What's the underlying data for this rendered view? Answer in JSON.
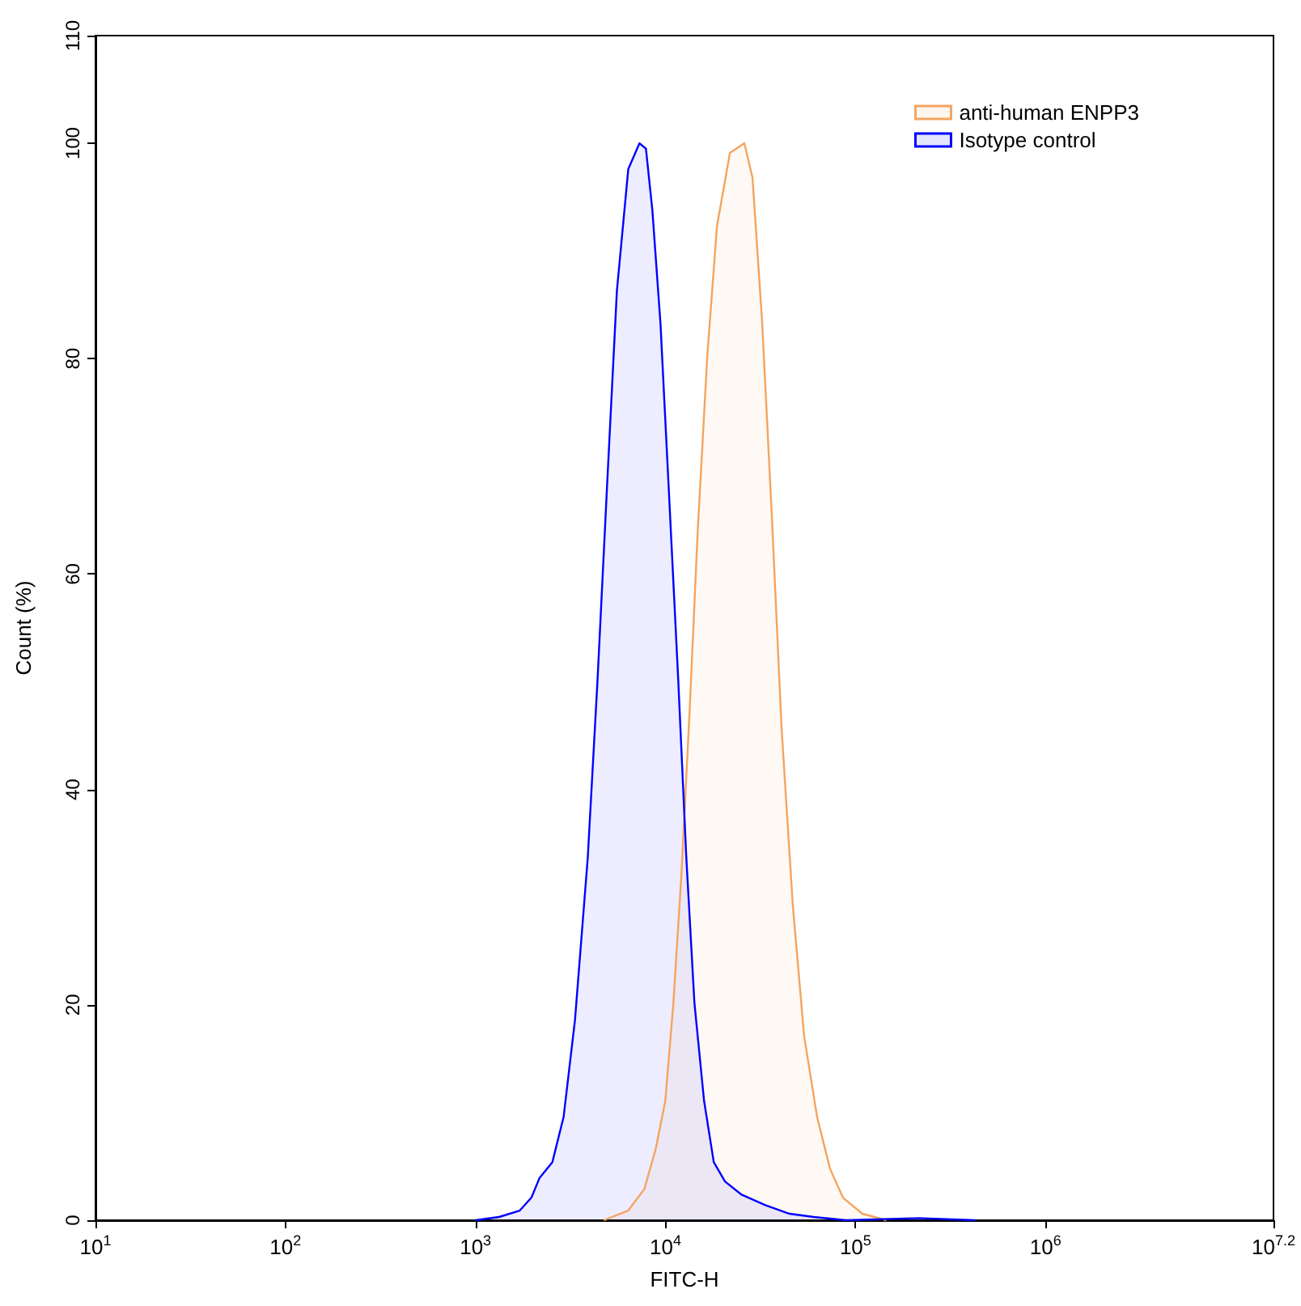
{
  "chart_data": {
    "type": "area",
    "xlabel": "FITC-H",
    "ylabel": "Count (%)",
    "log": "x",
    "xlim": [
      10,
      15848932
    ],
    "xticks": [
      {
        "value": 10,
        "label": "10$^{1}$"
      },
      {
        "value": 100,
        "label": "10$^{2}$"
      },
      {
        "value": 1000,
        "label": "10$^{3}$"
      },
      {
        "value": 10000,
        "label": "10$^{4}$"
      },
      {
        "value": 100000,
        "label": "10$^{5}$"
      },
      {
        "value": 1000000,
        "label": "10$^{6}$"
      },
      {
        "value": 15848932,
        "label": "10$^{7.2}$"
      }
    ],
    "ylim": [
      0,
      110
    ],
    "yticks": [
      0,
      20,
      40,
      60,
      80,
      100,
      110
    ],
    "grid": false,
    "legend": "top right",
    "series": [
      {
        "name": "anti-human ENPP3",
        "color": "#f4a460",
        "x": [
          4740,
          6370,
          7740,
          8880,
          9980,
          11010,
          12140,
          13390,
          14760,
          16600,
          18660,
          21830,
          26020,
          28710,
          32290,
          36310,
          40830,
          46810,
          53680,
          62780,
          73400,
          85900,
          108700,
          145500
        ],
        "values": [
          0,
          0.9,
          2.9,
          6.6,
          11.1,
          20.2,
          32.2,
          47.2,
          63.8,
          80.3,
          92.3,
          99.1,
          100,
          96.8,
          83.3,
          65.3,
          45.7,
          29.2,
          17.1,
          9.6,
          4.8,
          2.1,
          0.6,
          0
        ]
      },
      {
        "name": "Isotype control",
        "color": "#0000ff",
        "x": [
          1000,
          1330,
          1710,
          1970,
          2170,
          2540,
          2910,
          3340,
          3900,
          4390,
          4930,
          5550,
          6370,
          7300,
          7890,
          8530,
          9410,
          10380,
          11670,
          12870,
          14200,
          15960,
          17950,
          20570,
          25010,
          33560,
          45000,
          60400,
          89300,
          215000,
          427000
        ],
        "values": [
          0,
          0.3,
          0.9,
          2.1,
          3.9,
          5.4,
          9.6,
          18.6,
          33.7,
          50.2,
          68.3,
          86.3,
          97.6,
          100,
          99.5,
          93.8,
          83.3,
          68.3,
          50.2,
          33.7,
          20.2,
          11.1,
          5.4,
          3.6,
          2.4,
          1.4,
          0.6,
          0.3,
          0,
          0.2,
          0
        ]
      }
    ]
  }
}
